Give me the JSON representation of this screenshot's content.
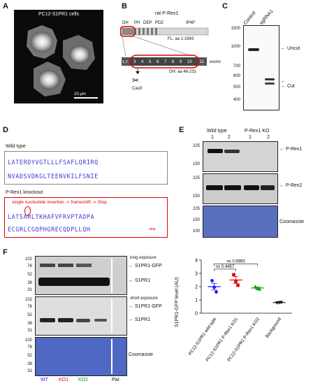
{
  "panel_labels": {
    "a": "A",
    "b": "B",
    "c": "C",
    "d": "D",
    "e": "E",
    "f": "F"
  },
  "panel_a": {
    "title": "PC12-S1PR1 cells",
    "scalebar": "10 μm"
  },
  "panel_b": {
    "title": "rat P-Rex1",
    "domains": [
      "DH",
      "PH",
      "DEP",
      "PDZ",
      "IP4P"
    ],
    "fl_label": "FL: aa 1-1643",
    "exons": [
      "1,2",
      "3",
      "4",
      "5",
      "6",
      "7",
      "8",
      "9",
      "10",
      "11"
    ],
    "exons_label": "exons",
    "dh_label": "DH: aa 46-231",
    "cas9": "Cas9"
  },
  "panel_c": {
    "lanes": [
      "Control",
      "sgRNA1"
    ],
    "markers": [
      "1500",
      "1000",
      "700",
      "600",
      "500",
      "400"
    ],
    "bands": [
      "Uncut",
      "Cut"
    ]
  },
  "panel_d": {
    "wt_title": "Wild type",
    "wt_line1": "LATERDYVGTLLLFSAFLQRIRQ",
    "wt_line2": "NVADSVDKGLTEENVKILFSNIE",
    "ko_title": "P-Rex1 knockout",
    "ko_annotation": "single nucleotide insertion -> frameshift -> Stop",
    "ko_line1": "LATSARLTKHAFVFRVPTADPA",
    "ko_line2": "ECGRLCGQPHGRECQDPLLQH",
    "stop": "stop"
  },
  "panel_e": {
    "groups": [
      "Wild type",
      "P-Rex1 KO"
    ],
    "lanes": [
      "1",
      "2",
      "1",
      "2"
    ],
    "markers_top": [
      "225",
      "150"
    ],
    "markers_mid": [
      "225",
      "150"
    ],
    "markers_bot": [
      "225",
      "150",
      "100"
    ],
    "labels": [
      "P-Rex1",
      "P-Rex2",
      "Coomassie"
    ]
  },
  "panel_f": {
    "exposure_long": "long exposure",
    "exposure_short": "short exposure",
    "markers_top": [
      "102",
      "76",
      "52",
      "38",
      "31"
    ],
    "markers_mid": [
      "102",
      "76",
      "52",
      "38",
      "31"
    ],
    "markers_bot": [
      "102",
      "76",
      "52",
      "38",
      "31"
    ],
    "band_gfp": "S1PR1-GFP",
    "band_s1pr1": "S1PR1",
    "coomassie": "Coomassie",
    "lanes": [
      {
        "label": "WT",
        "color": "#1a1aff"
      },
      {
        "label": "KO1",
        "color": "#e00000"
      },
      {
        "label": "KO2",
        "color": "#00a000"
      },
      {
        "label": "Par.",
        "color": "#111111"
      }
    ]
  },
  "chart_data": {
    "type": "scatter",
    "ylabel": "S1PR1-GFP level (AU)",
    "ylim": [
      0,
      4
    ],
    "yticks": [
      "0",
      "1",
      "2",
      "3",
      "4"
    ],
    "categories": [
      "PC12-S1PR1 wild type",
      "PC12-S1PR1 P-Rex1 KO1",
      "PC12-S1PR1 P-Rex1 KO2",
      "Background"
    ],
    "series": [
      {
        "category": "PC12-S1PR1 wild type",
        "color": "#1a1aff",
        "marker": "circle",
        "points": [
          2.45,
          1.95,
          1.6
        ],
        "mean": 2.0,
        "sem": 0.25
      },
      {
        "category": "PC12-S1PR1 P-Rex1 KO1",
        "color": "#e00000",
        "marker": "square",
        "points": [
          2.9,
          2.4,
          2.1
        ],
        "mean": 2.5,
        "sem": 0.27
      },
      {
        "category": "PC12-S1PR1 P-Rex1 KO2",
        "color": "#00a000",
        "marker": "triangle",
        "points": [
          2.0,
          1.85,
          1.8
        ],
        "mean": 1.9,
        "sem": 0.07
      },
      {
        "category": "Background",
        "color": "#111111",
        "marker": "triangle-down",
        "points": [
          0.78,
          0.8,
          0.82
        ],
        "mean": 0.8,
        "sem": 0.02
      }
    ],
    "annotations": [
      "ns 0.9993",
      "ns 0.4457"
    ]
  }
}
